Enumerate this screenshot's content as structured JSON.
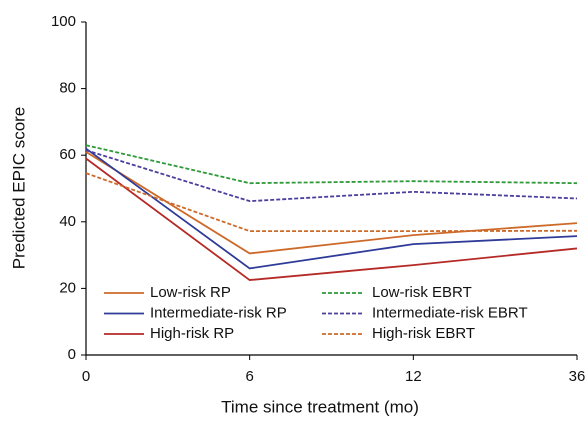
{
  "chart_data": {
    "type": "line",
    "x_label": "Time since treatment (mo)",
    "y_label": "Predicted EPIC score",
    "categories": [
      "0",
      "6",
      "12",
      "36"
    ],
    "ylim": [
      0,
      100
    ],
    "yticks": [
      0,
      20,
      40,
      60,
      80,
      100
    ],
    "legend": "lower-left",
    "series": [
      {
        "name": "Low-risk RP",
        "color": "#cd6a2a",
        "dashed": false,
        "values": [
          61,
          30.5,
          36,
          39.6
        ]
      },
      {
        "name": "Intermediate-risk RP",
        "color": "#2f3b98",
        "dashed": false,
        "values": [
          62,
          26,
          33.3,
          35.7
        ]
      },
      {
        "name": "High-risk RP",
        "color": "#b52a26",
        "dashed": false,
        "values": [
          59,
          22.5,
          27,
          32
        ]
      },
      {
        "name": "Low-risk EBRT",
        "color": "#2e9a3a",
        "dashed": true,
        "values": [
          63,
          51.6,
          52.2,
          51.6
        ]
      },
      {
        "name": "Intermediate-risk EBRT",
        "color": "#4a3f9c",
        "dashed": true,
        "values": [
          61.5,
          46.2,
          49,
          47
        ]
      },
      {
        "name": "High-risk EBRT",
        "color": "#cd6a2a",
        "dashed": true,
        "values": [
          54.6,
          37.2,
          37.2,
          37.3
        ]
      }
    ]
  }
}
